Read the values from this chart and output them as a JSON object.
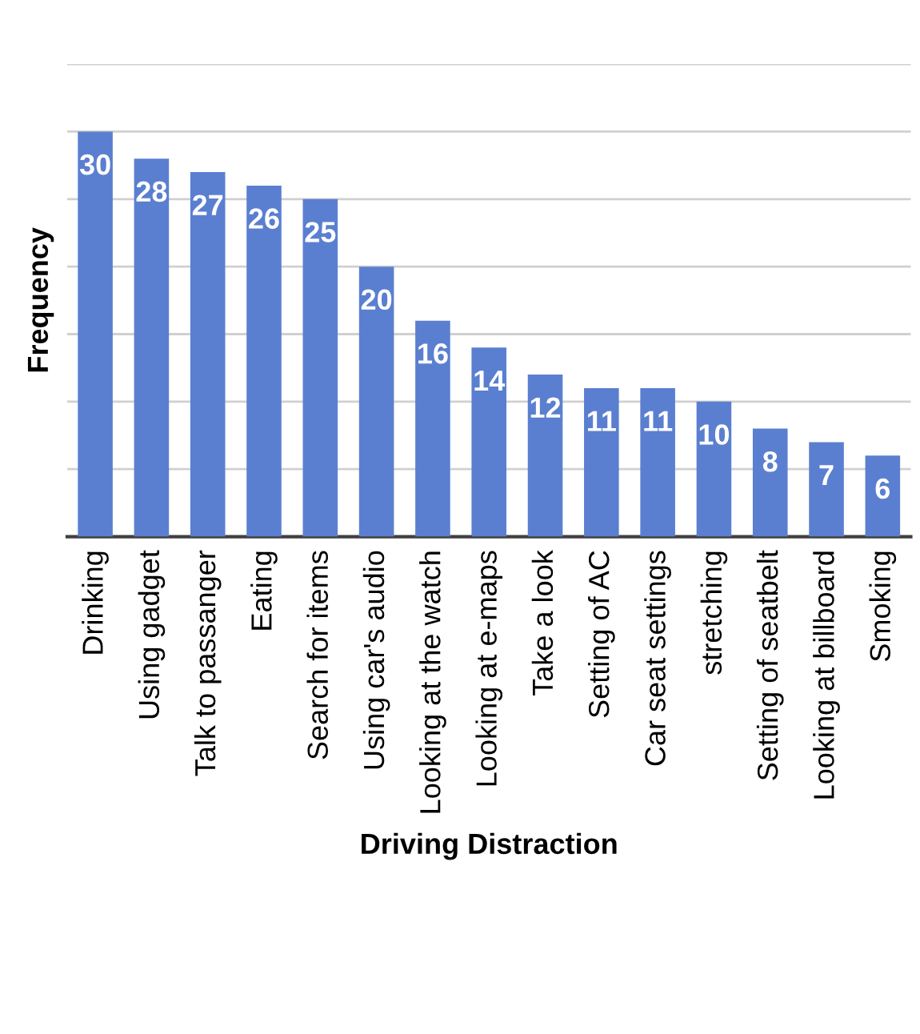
{
  "chart_data": {
    "type": "bar",
    "xlabel": "Driving Distraction",
    "ylabel": "Frequency",
    "categories": [
      "Drinking",
      "Using gadget",
      "Talk to passanger",
      "Eating",
      "Search for items",
      "Using car's audio",
      "Looking at the watch",
      "Looking at e-maps",
      "Take a look",
      "Setting of AC",
      "Car seat settings",
      "stretching",
      "Setting of seatbelt",
      "Looking at billboard",
      "Smoking"
    ],
    "values": [
      30,
      28,
      27,
      26,
      25,
      20,
      16,
      14,
      12,
      11,
      11,
      10,
      8,
      7,
      6
    ],
    "color": "#5b7fd0",
    "ylim": [
      0,
      35
    ],
    "yticks": [
      {
        "value": 0,
        "label": null
      },
      {
        "value": 5,
        "label": null
      },
      {
        "value": 10,
        "label": null
      },
      {
        "value": 15,
        "label": null
      },
      {
        "value": 20,
        "label": null
      },
      {
        "value": 25,
        "label": null
      },
      {
        "value": 30,
        "label": null
      },
      {
        "value": 35,
        "label": null
      }
    ],
    "tick_labels": "x",
    "grid": "y",
    "legend": false,
    "data_labels": true
  }
}
